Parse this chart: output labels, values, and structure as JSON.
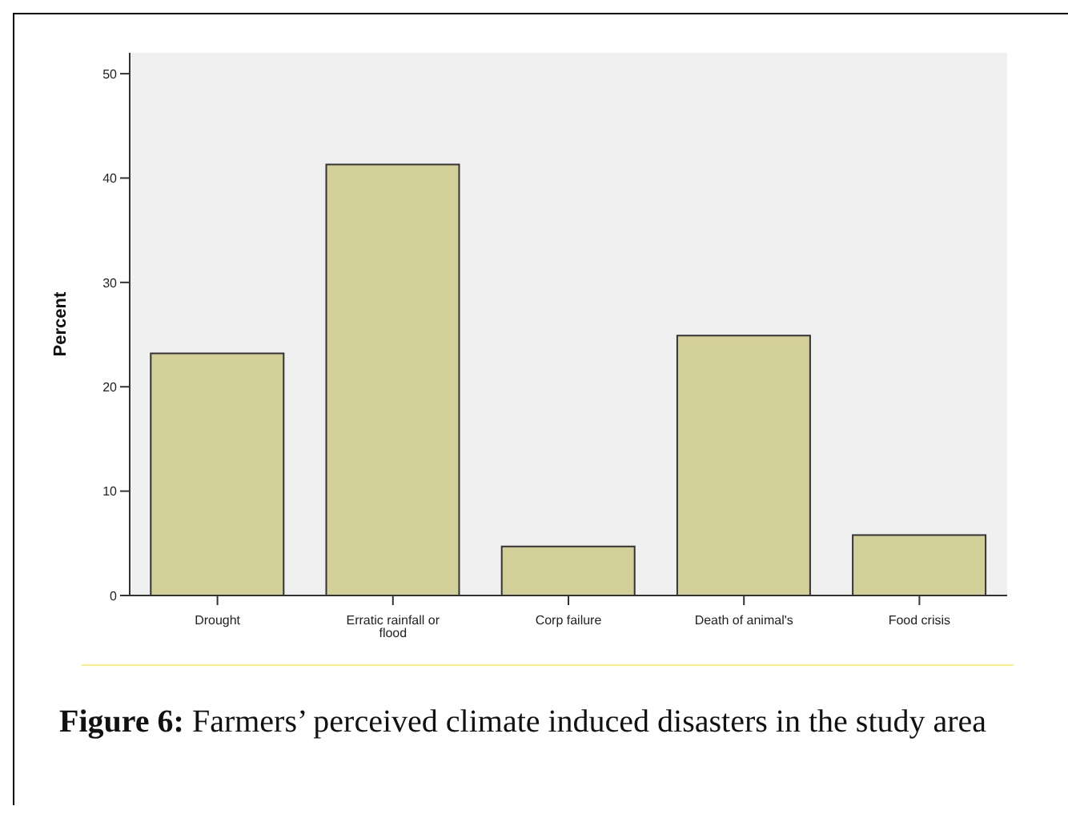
{
  "chart_data": {
    "type": "bar",
    "title": "Figure 6: Farmers’ perceived climate induced disasters in the study area",
    "ylabel": "Percent",
    "categories": [
      "Drought",
      "Erratic rainfall or flood",
      "Corp failure",
      "Death of animal's",
      "Food crisis"
    ],
    "values": [
      23.2,
      41.3,
      4.7,
      24.9,
      5.8
    ],
    "color": "#d3cf98",
    "ylim": [
      0,
      52
    ],
    "yticks": [
      0,
      10,
      20,
      30,
      40,
      50
    ],
    "grid": false
  }
}
